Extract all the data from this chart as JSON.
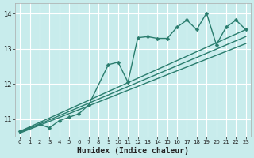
{
  "xlabel": "Humidex (Indice chaleur)",
  "bg_color": "#c8ecec",
  "grid_color": "#ffffff",
  "line_color": "#2a7d6e",
  "marker": "D",
  "markersize": 2.5,
  "linewidth": 1.0,
  "xlim": [
    -0.5,
    23.5
  ],
  "ylim": [
    10.5,
    14.3
  ],
  "yticks": [
    11,
    12,
    13,
    14
  ],
  "xticks": [
    0,
    1,
    2,
    3,
    4,
    5,
    6,
    7,
    8,
    9,
    10,
    11,
    12,
    13,
    14,
    15,
    16,
    17,
    18,
    19,
    20,
    21,
    22,
    23
  ],
  "series": [
    {
      "x": [
        0,
        2,
        3,
        4,
        5,
        6,
        7,
        9,
        10,
        11,
        12,
        13,
        14,
        15,
        16,
        17,
        18,
        19,
        20,
        21,
        22,
        23
      ],
      "y": [
        10.65,
        10.85,
        10.75,
        10.95,
        11.05,
        11.15,
        11.4,
        12.55,
        12.62,
        12.05,
        13.32,
        13.35,
        13.3,
        13.3,
        13.62,
        13.82,
        13.55,
        14.02,
        13.12,
        13.62,
        13.82,
        13.55
      ],
      "has_markers": true
    },
    {
      "x": [
        0,
        23
      ],
      "y": [
        10.65,
        13.55
      ],
      "has_markers": false
    },
    {
      "x": [
        0,
        23
      ],
      "y": [
        10.62,
        13.35
      ],
      "has_markers": false
    },
    {
      "x": [
        0,
        23
      ],
      "y": [
        10.6,
        13.15
      ],
      "has_markers": false
    }
  ]
}
